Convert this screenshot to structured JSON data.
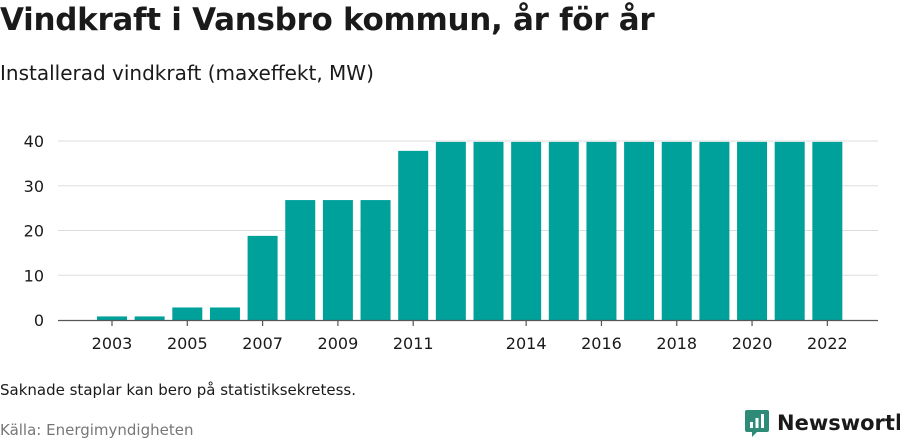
{
  "header": {
    "title": "Vindkraft i Vansbro kommun, år för år",
    "subtitle": "Installerad vindkraft (maxeffekt, MW)"
  },
  "footer": {
    "note": "Saknade staplar kan bero på statistiksekretess.",
    "source": "Källa: Energimyndigheten",
    "brand": "Newsworthy",
    "brand_icon": "newsworthy-logo-icon"
  },
  "colors": {
    "bar": "#00a19a",
    "grid": "#dddddd",
    "axis": "#555555",
    "text": "#1a1a1a",
    "brand": "#2e8b78"
  },
  "chart_data": {
    "type": "bar",
    "categories": [
      "2003",
      "2004",
      "2005",
      "2006",
      "2007",
      "2008",
      "2009",
      "2010",
      "2011",
      "2012",
      "2013",
      "2014",
      "2015",
      "2016",
      "2017",
      "2018",
      "2019",
      "2020",
      "2021",
      "2022"
    ],
    "values": [
      0.8,
      0.8,
      2.8,
      2.8,
      18.8,
      26.8,
      26.8,
      26.8,
      37.8,
      39.8,
      39.8,
      39.8,
      39.8,
      39.8,
      39.8,
      39.8,
      39.8,
      39.8,
      39.8,
      39.8
    ],
    "x_tick_labels": [
      "2003",
      "2005",
      "2007",
      "2009",
      "2011",
      "2014",
      "2016",
      "2018",
      "2020",
      "2022"
    ],
    "y_ticks": [
      0,
      10,
      20,
      30,
      40
    ],
    "ylim": [
      0,
      42
    ],
    "grid": true,
    "legend": "none"
  }
}
